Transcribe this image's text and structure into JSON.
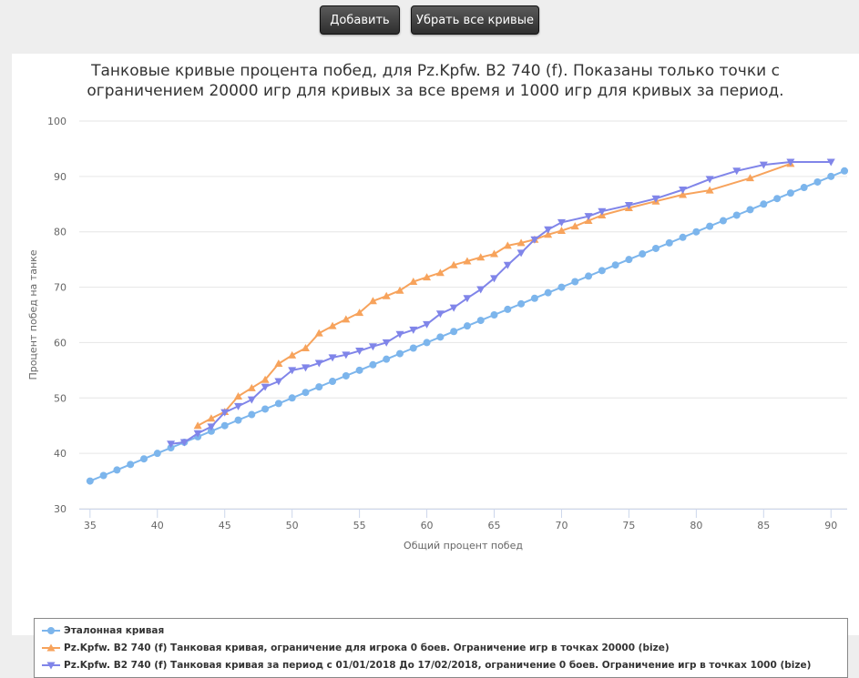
{
  "toolbar": {
    "add_label": "Добавить",
    "remove_all_label": "Убрать все кривые"
  },
  "chart_data": {
    "type": "line",
    "title": "Танковые кривые процента побед, для Pz.Kpfw. B2 740 (f). Показаны только точки с ограничением 20000 игр для кривых за все время и 1000 игр для кривых за период.",
    "title_lines": [
      "Танковые кривые процента побед, для Pz.Kpfw. B2 740 (f). Показаны только точки с",
      "ограничением 20000 игр для кривых за все время и 1000 игр для кривых за период."
    ],
    "xlabel": "Общий процент побед",
    "ylabel": "Процент побед на танке",
    "xlim": [
      34.2,
      91.2
    ],
    "ylim": [
      30,
      100
    ],
    "xticks": [
      "35",
      "40",
      "45",
      "50",
      "55",
      "60",
      "65",
      "70",
      "75",
      "80",
      "85",
      "90"
    ],
    "yticks": [
      "30",
      "40",
      "50",
      "60",
      "70",
      "80",
      "90",
      "100"
    ],
    "grid": true,
    "legend_position": "bottom",
    "series": [
      {
        "name": "Эталонная кривая",
        "color": "#7cb5ec",
        "marker": "circle",
        "x": [
          35,
          36,
          37,
          38,
          39,
          40,
          41,
          42,
          43,
          44,
          45,
          46,
          47,
          48,
          49,
          50,
          51,
          52,
          53,
          54,
          55,
          56,
          57,
          58,
          59,
          60,
          61,
          62,
          63,
          64,
          65,
          66,
          67,
          68,
          69,
          70,
          71,
          72,
          73,
          74,
          75,
          76,
          77,
          78,
          79,
          80,
          81,
          82,
          83,
          84,
          85,
          86,
          87,
          88,
          89,
          90,
          91
        ],
        "y": [
          35,
          36,
          37,
          38,
          39,
          40,
          41,
          42,
          43,
          44,
          45,
          46,
          47,
          48,
          49,
          50,
          51,
          52,
          53,
          54,
          55,
          56,
          57,
          58,
          59,
          60,
          61,
          62,
          63,
          64,
          65,
          66,
          67,
          68,
          69,
          70,
          71,
          72,
          73,
          74,
          75,
          76,
          77,
          78,
          79,
          80,
          81,
          82,
          83,
          84,
          85,
          86,
          87,
          88,
          89,
          90,
          91
        ]
      },
      {
        "name": "Pz.Kpfw. B2 740 (f) Танковая кривая, ограничение для игрока 0 боев. Ограничение игр в точках 20000 (bize)",
        "color": "#f7a35c",
        "marker": "triangle",
        "x": [
          43,
          44,
          45,
          46,
          47,
          48,
          49,
          50,
          51,
          52,
          53,
          54,
          55,
          56,
          57,
          58,
          59,
          60,
          61,
          62,
          63,
          64,
          65,
          66,
          67,
          68,
          69,
          70,
          71,
          72,
          73,
          75,
          77,
          79,
          81,
          84,
          87
        ],
        "y": [
          45.0,
          46.3,
          47.5,
          50.3,
          51.8,
          53.3,
          56.2,
          57.7,
          59.0,
          61.7,
          63.0,
          64.2,
          65.4,
          67.5,
          68.4,
          69.4,
          71.0,
          71.8,
          72.6,
          74.0,
          74.7,
          75.4,
          76.0,
          77.5,
          78.0,
          78.6,
          79.5,
          80.2,
          81.0,
          82.0,
          83.0,
          84.3,
          85.5,
          86.7,
          87.5,
          89.7,
          92.3
        ]
      },
      {
        "name": "Pz.Kpfw. B2 740 (f) Танковая кривая за период с 01/01/2018 До 17/02/2018, ограничение 0 боев. Ограничение игр в точках 1000 (bize)",
        "color": "#8085e9",
        "marker": "triangle-down",
        "x": [
          41,
          42,
          43,
          44,
          45,
          46,
          47,
          48,
          49,
          50,
          51,
          52,
          53,
          54,
          55,
          56,
          57,
          58,
          59,
          60,
          61,
          62,
          63,
          64,
          65,
          66,
          67,
          68,
          69,
          70,
          72,
          73,
          75,
          77,
          79,
          81,
          83,
          85,
          87,
          90
        ],
        "y": [
          41.7,
          42.0,
          43.6,
          44.8,
          47.4,
          48.5,
          49.7,
          52.0,
          53.0,
          55.0,
          55.5,
          56.3,
          57.3,
          57.8,
          58.5,
          59.3,
          60.0,
          61.5,
          62.3,
          63.3,
          65.2,
          66.3,
          68.0,
          69.6,
          71.6,
          74.0,
          76.2,
          78.6,
          80.4,
          81.7,
          82.8,
          83.7,
          84.8,
          86.0,
          87.6,
          89.5,
          91.0,
          92.1,
          92.6,
          92.6
        ]
      }
    ]
  }
}
